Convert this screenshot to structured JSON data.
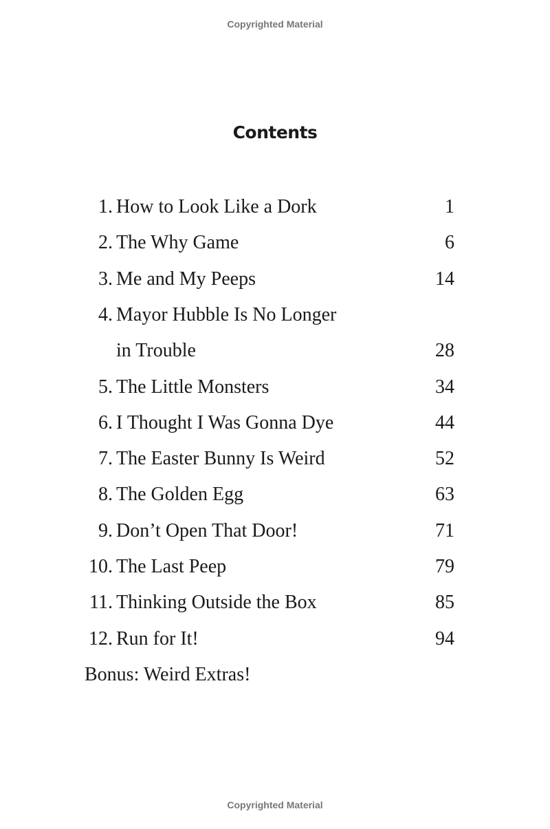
{
  "watermark_top": "Copyrighted Material",
  "watermark_bottom": "Copyrighted Material",
  "heading": "Contents",
  "entries": [
    {
      "num": "1.",
      "title": "How to Look Like a Dork",
      "page": "1"
    },
    {
      "num": "2.",
      "title": "The Why Game",
      "page": "6"
    },
    {
      "num": "3.",
      "title": "Me and My Peeps",
      "page": "14"
    },
    {
      "num": "4.",
      "title": "Mayor Hubble Is No Longer",
      "title_cont": "in Trouble",
      "page": "28"
    },
    {
      "num": "5.",
      "title": "The Little Monsters",
      "page": "34"
    },
    {
      "num": "6.",
      "title": "I Thought I Was Gonna Dye",
      "page": "44"
    },
    {
      "num": "7.",
      "title": "The Easter Bunny Is Weird",
      "page": "52"
    },
    {
      "num": "8.",
      "title": "The Golden Egg",
      "page": "63"
    },
    {
      "num": "9.",
      "title": "Don’t Open That Door!",
      "page": "71"
    },
    {
      "num": "10.",
      "title": "The Last Peep",
      "page": "79"
    },
    {
      "num": "11.",
      "title": "Thinking Outside the Box",
      "page": "85"
    },
    {
      "num": "12.",
      "title": "Run for It!",
      "page": "94"
    }
  ],
  "bonus": "Bonus: Weird Extras!"
}
